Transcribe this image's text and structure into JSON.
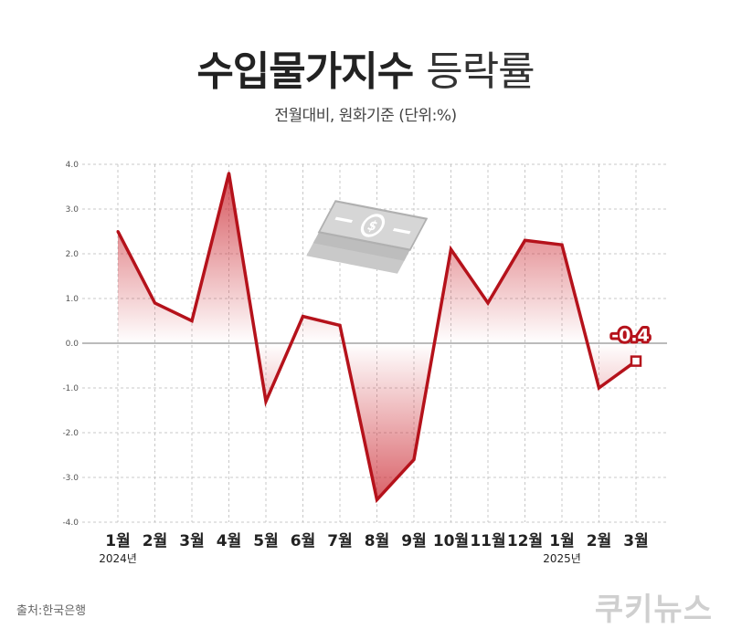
{
  "header": {
    "title_bold": "수입물가지수",
    "title_light": "등락률",
    "subtitle": "전월대비, 원화기준 (단위:%)"
  },
  "footer": {
    "source": "출처:한국은행",
    "brand": "쿠키뉴스"
  },
  "colors": {
    "line": "#b5121b",
    "fill": "#cc2a33",
    "grid": "#c8c8c8",
    "zero_line": "#777777",
    "tick_text": "#555555",
    "month_text": "#222222"
  },
  "icons": [
    "money-stack-icon"
  ],
  "chart_data": {
    "type": "area",
    "x": [
      "1월",
      "2월",
      "3월",
      "4월",
      "5월",
      "6월",
      "7월",
      "8월",
      "9월",
      "10월",
      "11월",
      "12월",
      "1월",
      "2월",
      "3월"
    ],
    "year_labels": [
      {
        "index": 0,
        "label": "2024년"
      },
      {
        "index": 12,
        "label": "2025년"
      }
    ],
    "values": [
      2.5,
      0.9,
      0.5,
      3.8,
      -1.3,
      0.6,
      0.4,
      -3.5,
      -2.6,
      2.1,
      0.9,
      2.3,
      2.2,
      -1.0,
      -0.4
    ],
    "ylim": [
      -4.0,
      4.0
    ],
    "yticks": [
      "4.0",
      "3.0",
      "2.0",
      "1.0",
      "0.0",
      "-1.0",
      "-2.0",
      "-3.0",
      "-4.0"
    ],
    "highlight": {
      "index": 14,
      "label": "-0.4"
    },
    "grid": true,
    "legend": "none"
  }
}
